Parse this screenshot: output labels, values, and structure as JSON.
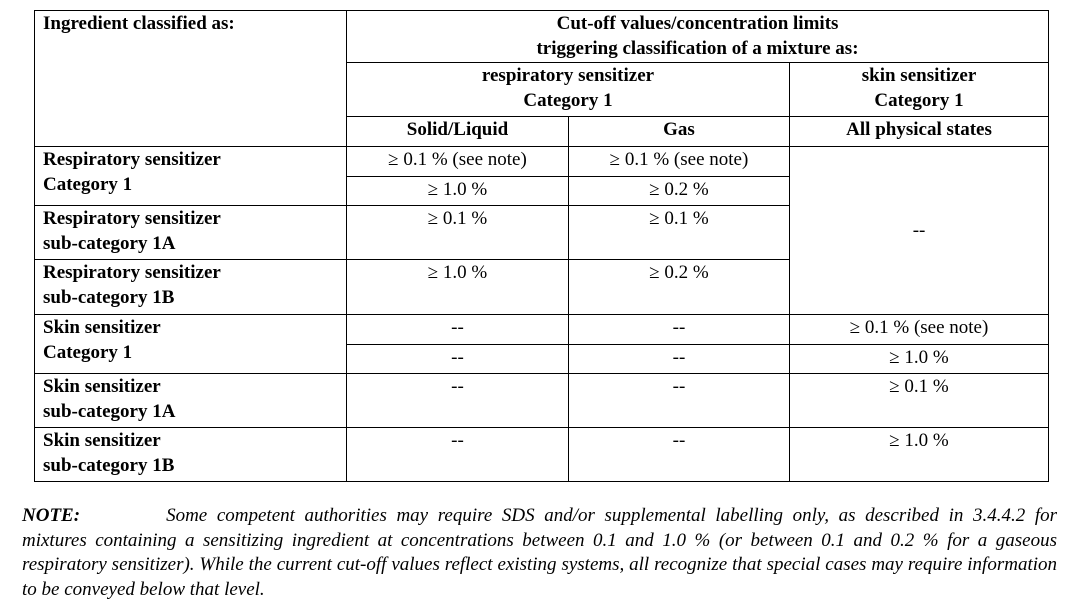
{
  "table": {
    "header": {
      "ingredient": "Ingredient classified as:",
      "cutoff_line1": "Cut-off values/concentration limits",
      "cutoff_line2": "triggering classification of a mixture as:",
      "resp_line1": "respiratory sensitizer",
      "resp_line2": "Category 1",
      "skin_line1": "skin sensitizer",
      "skin_line2": "Category 1",
      "solid_liquid": "Solid/Liquid",
      "gas": "Gas",
      "all_states": "All physical states"
    },
    "rows": [
      {
        "label1": "Respiratory sensitizer",
        "label2": "Category 1",
        "sub": [
          {
            "solid": "≥ 0.1 % (see note)",
            "gas": "≥ 0.1 % (see note)"
          },
          {
            "solid": "≥ 1.0 %",
            "gas": "≥ 0.2 %"
          }
        ]
      },
      {
        "label1": "Respiratory sensitizer",
        "label2": "sub-category 1A",
        "solid": "≥ 0.1 %",
        "gas": "≥ 0.1 %"
      },
      {
        "label1": "Respiratory sensitizer",
        "label2": "sub-category 1B",
        "solid": "≥ 1.0 %",
        "gas": "≥ 0.2 %"
      },
      {
        "label1": "Skin sensitizer",
        "label2": "Category 1",
        "sub": [
          {
            "solid": "--",
            "gas": "--",
            "skin": "≥ 0.1 % (see note)"
          },
          {
            "solid": "--",
            "gas": "--",
            "skin": "≥ 1.0 %"
          }
        ]
      },
      {
        "label1": "Skin sensitizer",
        "label2": "sub-category 1A",
        "solid": "--",
        "gas": "--",
        "skin": "≥ 0.1 %"
      },
      {
        "label1": "Skin sensitizer",
        "label2": "sub-category 1B",
        "solid": "--",
        "gas": "--",
        "skin": "≥ 1.0 %"
      }
    ],
    "resp_skin_merged": "--"
  },
  "note": {
    "label": "NOTE:",
    "text": "Some competent authorities may require SDS and/or supplemental labelling only, as described in 3.4.4.2 for mixtures containing a sensitizing ingredient at concentrations between 0.1 and 1.0 % (or between 0.1 and 0.2 % for a gaseous respiratory sensitizer). While the current cut-off values reflect existing systems, all recognize that special cases may require information to be conveyed below that level."
  }
}
